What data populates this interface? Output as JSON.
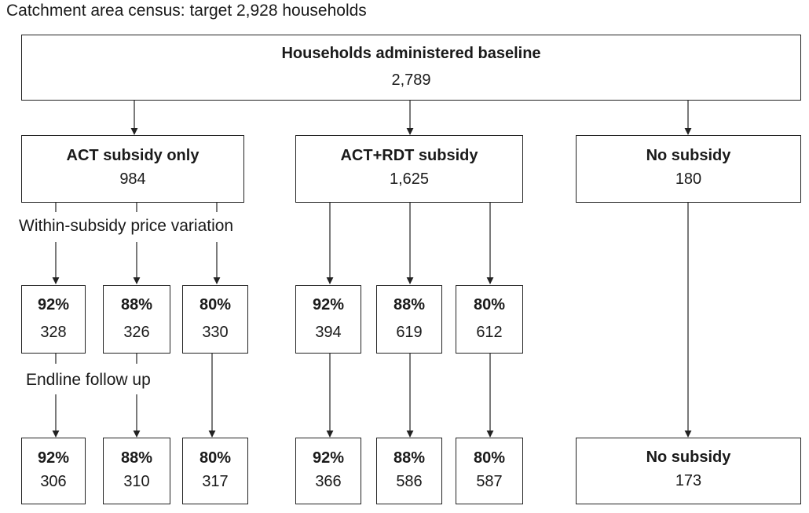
{
  "title": "Catchment area census: target 2,928 households",
  "baseline": {
    "title": "Households administered baseline",
    "count": "2,789"
  },
  "arms": [
    {
      "title": "ACT subsidy only",
      "count": "984"
    },
    {
      "title": "ACT+RDT subsidy",
      "count": "1,625"
    },
    {
      "title": "No subsidy",
      "count": "180"
    }
  ],
  "labels": {
    "price_variation": "Within-subsidy price variation",
    "endline": "Endline follow up"
  },
  "mid": [
    {
      "pct": "92%",
      "count": "328"
    },
    {
      "pct": "88%",
      "count": "326"
    },
    {
      "pct": "80%",
      "count": "330"
    },
    {
      "pct": "92%",
      "count": "394"
    },
    {
      "pct": "88%",
      "count": "619"
    },
    {
      "pct": "80%",
      "count": "612"
    }
  ],
  "end": [
    {
      "pct": "92%",
      "count": "306"
    },
    {
      "pct": "88%",
      "count": "310"
    },
    {
      "pct": "80%",
      "count": "317"
    },
    {
      "pct": "92%",
      "count": "366"
    },
    {
      "pct": "88%",
      "count": "586"
    },
    {
      "pct": "80%",
      "count": "587"
    }
  ],
  "end_no_subsidy": {
    "title": "No subsidy",
    "count": "173"
  }
}
